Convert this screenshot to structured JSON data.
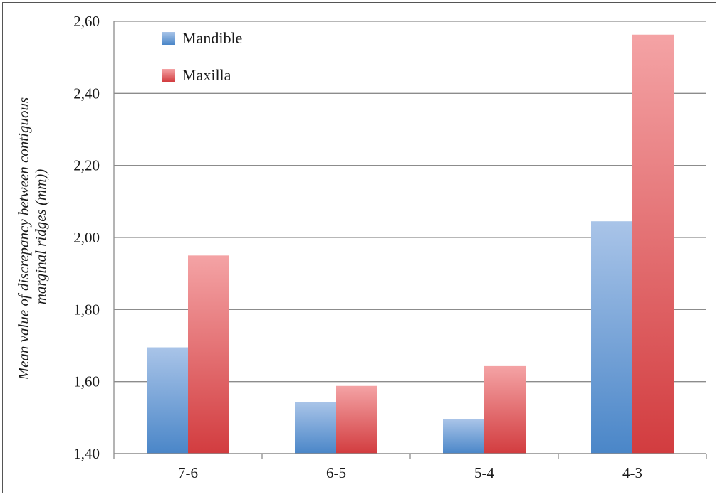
{
  "chart_data": {
    "type": "bar",
    "categories": [
      "7-6",
      "6-5",
      "5-4",
      "4-3"
    ],
    "series": [
      {
        "name": "Mandible",
        "values": [
          1.695,
          1.543,
          1.495,
          2.045
        ]
      },
      {
        "name": "Maxilla",
        "values": [
          1.95,
          1.588,
          1.643,
          2.563
        ]
      }
    ],
    "ylabel_line1": "Mean value of discrepancy between contiguous",
    "ylabel_line2": "marginal ridges (mm))",
    "xlabel": "",
    "ylim": [
      1.4,
      2.6
    ],
    "y_ticks": [
      "1,40",
      "1,60",
      "1,80",
      "2,00",
      "2,20",
      "2,40",
      "2,60"
    ],
    "grid": true,
    "legend_position": "top-left"
  },
  "colors": {
    "mandible_top": "#a9c4e8",
    "mandible_bottom": "#4a86c8",
    "maxilla_top": "#f4a3a5",
    "maxilla_bottom": "#d23c3f",
    "grid": "#8c8c8c"
  }
}
